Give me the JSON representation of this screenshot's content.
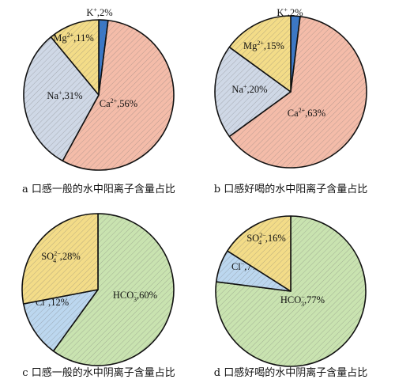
{
  "chart_data": [
    {
      "type": "pie",
      "title": "a 口感一般的水中阳离子含量占比",
      "slices": [
        {
          "name": "K",
          "charge": "+",
          "sub": "",
          "value": 2,
          "label_value": "2%",
          "color": "#3a78c8"
        },
        {
          "name": "Ca",
          "charge": "2+",
          "sub": "",
          "value": 56,
          "label_value": "56%",
          "color": "#f4bca9"
        },
        {
          "name": "Na",
          "charge": "+",
          "sub": "",
          "value": 31,
          "label_value": "31%",
          "color": "#cfd8e6"
        },
        {
          "name": "Mg",
          "charge": "2+",
          "sub": "",
          "value": 11,
          "label_value": "11%",
          "color": "#f3dc88"
        }
      ]
    },
    {
      "type": "pie",
      "title": "b 口感好喝的水中阳离子含量占比",
      "slices": [
        {
          "name": "K",
          "charge": "+",
          "sub": "",
          "value": 2,
          "label_value": "2%",
          "color": "#3a78c8"
        },
        {
          "name": "Ca",
          "charge": "2+",
          "sub": "",
          "value": 63,
          "label_value": "63%",
          "color": "#f4bca9"
        },
        {
          "name": "Na",
          "charge": "+",
          "sub": "",
          "value": 20,
          "label_value": "20%",
          "color": "#cfd8e6"
        },
        {
          "name": "Mg",
          "charge": "2+",
          "sub": "",
          "value": 15,
          "label_value": "15%",
          "color": "#f3dc88"
        }
      ]
    },
    {
      "type": "pie",
      "title": "c 口感一般的水中阴离子含量占比",
      "slices": [
        {
          "name": "HCO",
          "charge": "−",
          "sub": "3",
          "value": 60,
          "label_value": "60%",
          "color": "#c9e3b0"
        },
        {
          "name": "Cl",
          "charge": "−",
          "sub": "",
          "value": 12,
          "label_value": "12%",
          "color": "#bcd7ef"
        },
        {
          "name": "SO",
          "charge": "2−",
          "sub": "4",
          "value": 28,
          "label_value": "28%",
          "color": "#f3dc88"
        }
      ]
    },
    {
      "type": "pie",
      "title": "d 口感好喝的水中阴离子含量占比",
      "slices": [
        {
          "name": "HCO",
          "charge": "−",
          "sub": "3",
          "value": 77,
          "label_value": "77%",
          "color": "#c9e3b0"
        },
        {
          "name": "Cl",
          "charge": "−",
          "sub": "",
          "value": 7,
          "label_value": "7%",
          "color": "#bcd7ef"
        },
        {
          "name": "SO",
          "charge": "2−",
          "sub": "4",
          "value": 16,
          "label_value": "16%",
          "color": "#f3dc88"
        }
      ]
    }
  ]
}
